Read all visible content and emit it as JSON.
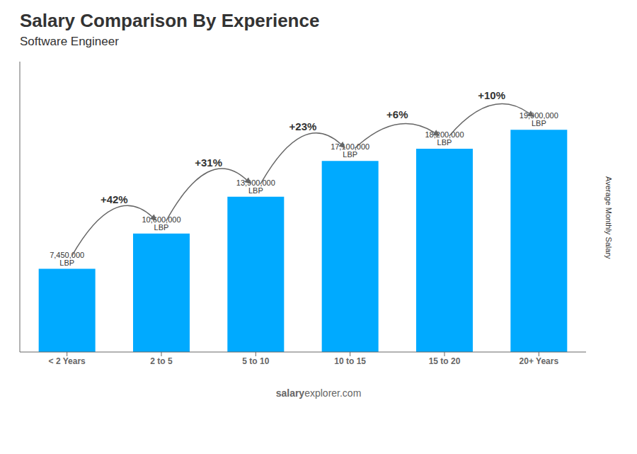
{
  "chart_data": {
    "type": "bar",
    "title": "Salary Comparison By Experience",
    "subtitle": "Software Engineer",
    "y_label": "Average Monthly Salary",
    "watermark": {
      "bold": "salary",
      "regular": "explorer.com"
    },
    "categories": [
      "< 2 Years",
      "2 to 5",
      "5 to 10",
      "10 to 15",
      "15 to 20",
      "20+ Years"
    ],
    "values": [
      7450000,
      10600000,
      13900000,
      17100000,
      18200000,
      19900000
    ],
    "value_labels": [
      "7,450,000 LBP",
      "10,600,000 LBP",
      "13,900,000 LBP",
      "17,100,000 LBP",
      "18,200,000 LBP",
      "19,900,000 LBP"
    ],
    "data_labels": true,
    "annotations": [
      "+42%",
      "+31%",
      "+23%",
      "+6%",
      "+10%"
    ],
    "color": "#00aaff",
    "ylim": [
      0,
      26000000
    ],
    "tick_labels": "x",
    "grid": false
  }
}
